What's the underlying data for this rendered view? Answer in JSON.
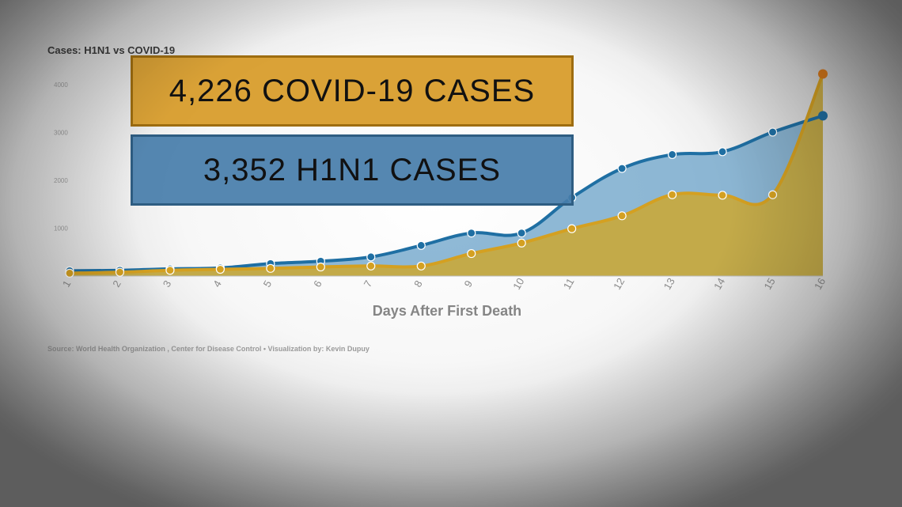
{
  "chart_data": {
    "type": "line",
    "title": "Cases: H1N1 vs COVID-19",
    "xlabel": "Days After First Death",
    "ylabel": "",
    "categories": [
      "1",
      "2",
      "3",
      "4",
      "5",
      "6",
      "7",
      "8",
      "9",
      "10",
      "11",
      "12",
      "13",
      "14",
      "15",
      "16"
    ],
    "ylim": [
      0,
      4400
    ],
    "yticks": [
      "1000",
      "2000",
      "3000",
      "4000"
    ],
    "series": [
      {
        "name": "COVID-19",
        "color": "#d4a021",
        "fill": "#c9a83a",
        "values": [
          60,
          80,
          120,
          140,
          160,
          190,
          210,
          210,
          470,
          690,
          990,
          1260,
          1700,
          1690,
          1700,
          4226
        ]
      },
      {
        "name": "H1N1",
        "color": "#1f6fa3",
        "fill": "#6aa1c8",
        "values": [
          110,
          120,
          150,
          170,
          260,
          310,
          400,
          640,
          900,
          900,
          1640,
          2250,
          2540,
          2600,
          3010,
          3352
        ]
      }
    ],
    "grid": false,
    "legend": "none"
  },
  "callouts": {
    "covid": "4,226 COVID-19 CASES",
    "h1n1": "3,352 H1N1 CASES"
  },
  "source": "Source: World Health Organization , Center for Disease Control • Visualization by: Kevin Dupuy"
}
